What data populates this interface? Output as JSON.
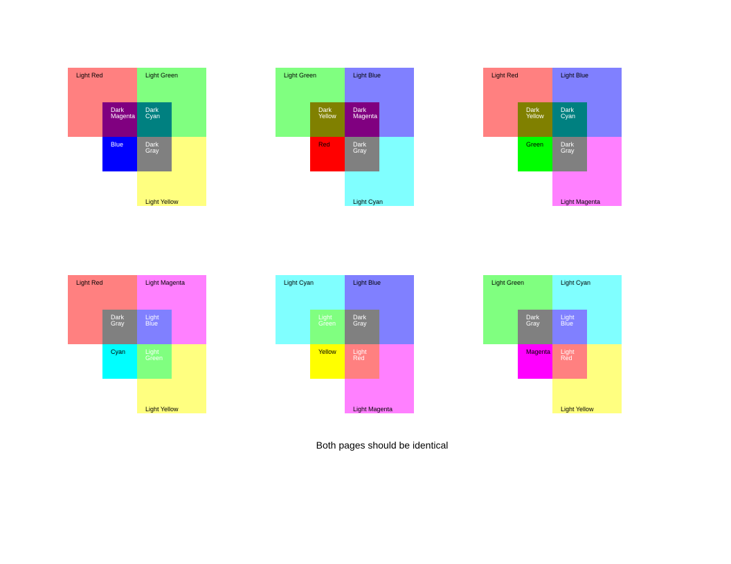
{
  "caption": "Both pages should be identical",
  "colors": {
    "light_red": "#ff8080",
    "light_green": "#80ff80",
    "light_blue": "#8080ff",
    "light_cyan": "#80ffff",
    "light_magenta": "#ff80ff",
    "light_yellow": "#ffff80",
    "dark_magenta": "#800080",
    "dark_cyan": "#008080",
    "dark_yellow": "#808000",
    "dark_gray": "#808080",
    "blue": "#0000ff",
    "red": "#ff0000",
    "green": "#00ff00",
    "cyan": "#00ffff",
    "yellow": "#ffff00",
    "magenta": "#ff00ff"
  },
  "panels": [
    {
      "top_left": {
        "label": "Light Red",
        "color": "#ff8080",
        "text_color": "#000000"
      },
      "top_right": {
        "label": "Light Green",
        "color": "#80ff80",
        "text_color": "#000000"
      },
      "bottom_right": {
        "label": "Light Yellow",
        "color": "#ffff80",
        "text_color": "#000000"
      },
      "inner_tl": {
        "label": "Dark\nMagenta",
        "color": "#800080",
        "text_color": "#ffffff"
      },
      "inner_tr": {
        "label": "Dark\nCyan",
        "color": "#008080",
        "text_color": "#ffffff"
      },
      "inner_bl": {
        "label": "Blue",
        "color": "#0000ff",
        "text_color": "#ffffff"
      },
      "inner_br": {
        "label": "Dark\nGray",
        "color": "#808080",
        "text_color": "#ffffff"
      }
    },
    {
      "top_left": {
        "label": "Light Green",
        "color": "#80ff80",
        "text_color": "#000000"
      },
      "top_right": {
        "label": "Light Blue",
        "color": "#8080ff",
        "text_color": "#000000"
      },
      "bottom_right": {
        "label": "Light Cyan",
        "color": "#80ffff",
        "text_color": "#000000"
      },
      "inner_tl": {
        "label": "Dark\nYellow",
        "color": "#808000",
        "text_color": "#ffffff"
      },
      "inner_tr": {
        "label": "Dark\nMagenta",
        "color": "#800080",
        "text_color": "#ffffff"
      },
      "inner_bl": {
        "label": "Red",
        "color": "#ff0000",
        "text_color": "#000000"
      },
      "inner_br": {
        "label": "Dark\nGray",
        "color": "#808080",
        "text_color": "#ffffff"
      }
    },
    {
      "top_left": {
        "label": "Light Red",
        "color": "#ff8080",
        "text_color": "#000000"
      },
      "top_right": {
        "label": "Light Blue",
        "color": "#8080ff",
        "text_color": "#000000"
      },
      "bottom_right": {
        "label": "Light Magenta",
        "color": "#ff80ff",
        "text_color": "#000000"
      },
      "inner_tl": {
        "label": "Dark\nYellow",
        "color": "#808000",
        "text_color": "#ffffff"
      },
      "inner_tr": {
        "label": "Dark\nCyan",
        "color": "#008080",
        "text_color": "#ffffff"
      },
      "inner_bl": {
        "label": "Green",
        "color": "#00ff00",
        "text_color": "#000000"
      },
      "inner_br": {
        "label": "Dark\nGray",
        "color": "#808080",
        "text_color": "#ffffff"
      }
    },
    {
      "top_left": {
        "label": "Light Red",
        "color": "#ff8080",
        "text_color": "#000000"
      },
      "top_right": {
        "label": "Light Magenta",
        "color": "#ff80ff",
        "text_color": "#000000"
      },
      "bottom_right": {
        "label": "Light Yellow",
        "color": "#ffff80",
        "text_color": "#000000"
      },
      "inner_tl": {
        "label": "Dark\nGray",
        "color": "#808080",
        "text_color": "#ffffff"
      },
      "inner_tr": {
        "label": "Light\nBlue",
        "color": "#8080ff",
        "text_color": "#ffffff"
      },
      "inner_bl": {
        "label": "Cyan",
        "color": "#00ffff",
        "text_color": "#000000"
      },
      "inner_br": {
        "label": "Light\nGreen",
        "color": "#80ff80",
        "text_color": "#ffffff"
      }
    },
    {
      "top_left": {
        "label": "Light Cyan",
        "color": "#80ffff",
        "text_color": "#000000"
      },
      "top_right": {
        "label": "Light Blue",
        "color": "#8080ff",
        "text_color": "#000000"
      },
      "bottom_right": {
        "label": "Light Magenta",
        "color": "#ff80ff",
        "text_color": "#000000"
      },
      "inner_tl": {
        "label": "Light\nGreen",
        "color": "#80ff80",
        "text_color": "#ffffff"
      },
      "inner_tr": {
        "label": "Dark\nGray",
        "color": "#808080",
        "text_color": "#ffffff"
      },
      "inner_bl": {
        "label": "Yellow",
        "color": "#ffff00",
        "text_color": "#000000"
      },
      "inner_br": {
        "label": "Light\nRed",
        "color": "#ff8080",
        "text_color": "#ffffff"
      }
    },
    {
      "top_left": {
        "label": "Light Green",
        "color": "#80ff80",
        "text_color": "#000000"
      },
      "top_right": {
        "label": "Light Cyan",
        "color": "#80ffff",
        "text_color": "#000000"
      },
      "bottom_right": {
        "label": "Light Yellow",
        "color": "#ffff80",
        "text_color": "#000000"
      },
      "inner_tl": {
        "label": "Dark\nGray",
        "color": "#808080",
        "text_color": "#ffffff"
      },
      "inner_tr": {
        "label": "Light\nBlue",
        "color": "#8080ff",
        "text_color": "#ffffff"
      },
      "inner_bl": {
        "label": "Magenta",
        "color": "#ff00ff",
        "text_color": "#000000"
      },
      "inner_br": {
        "label": "Light\nRed",
        "color": "#ff8080",
        "text_color": "#ffffff"
      }
    }
  ]
}
